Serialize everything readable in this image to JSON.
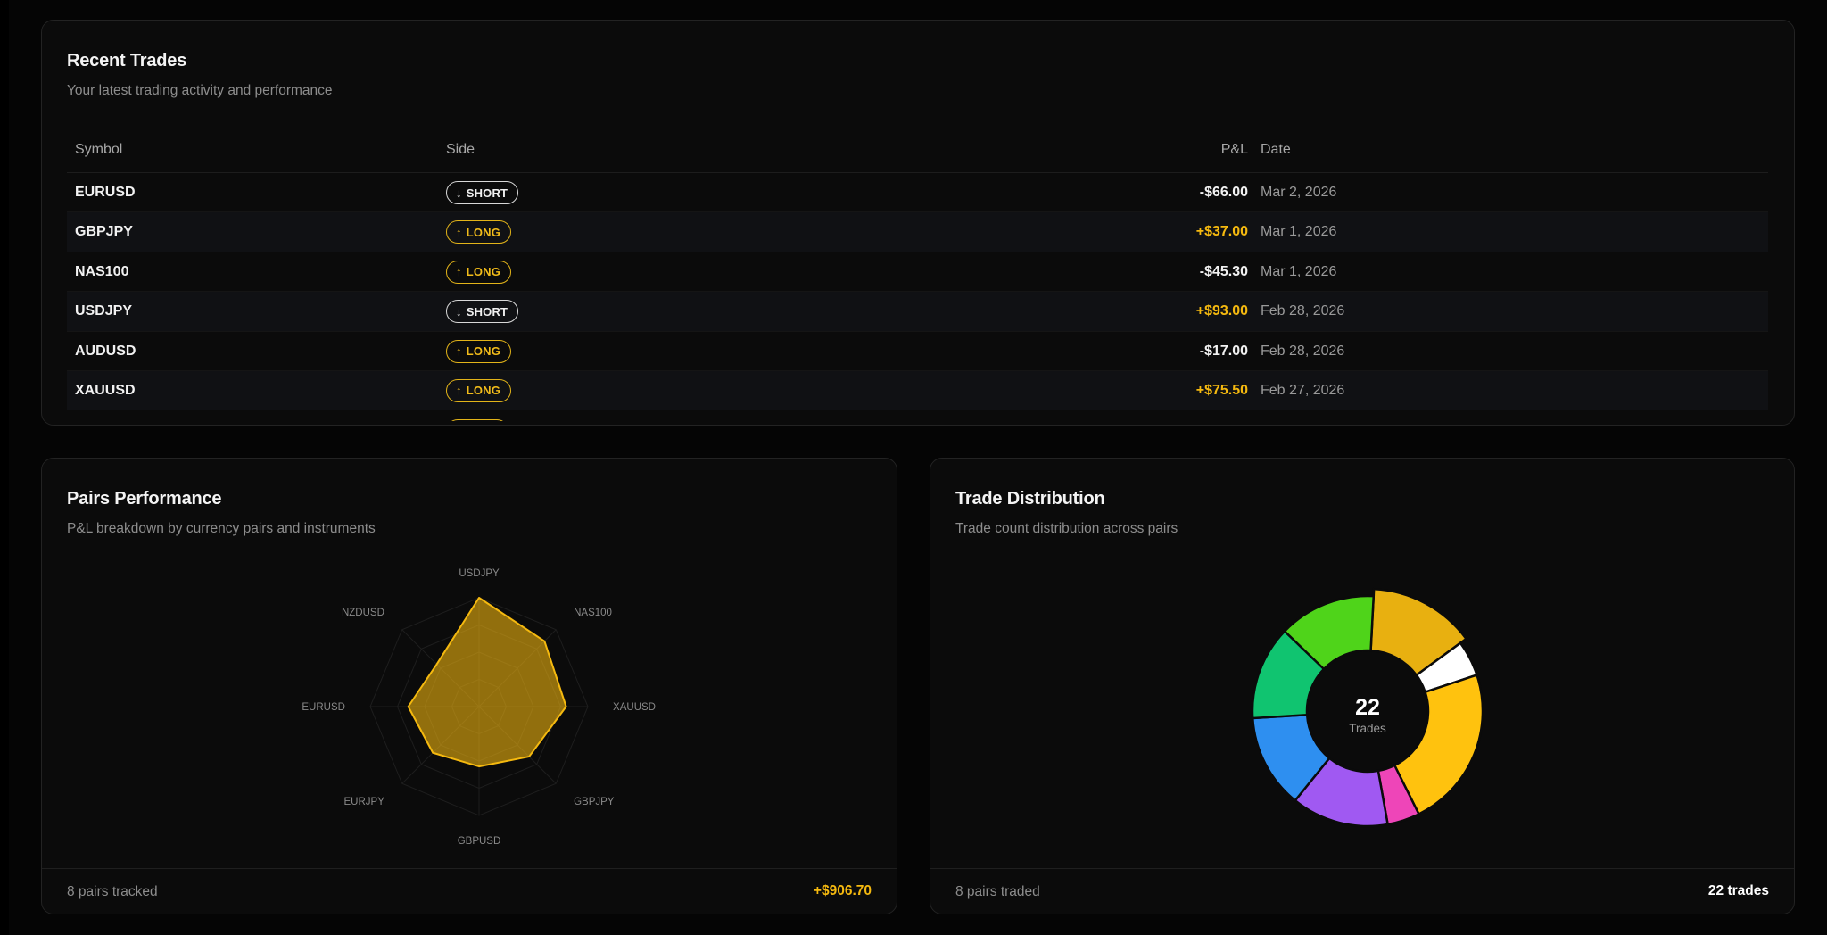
{
  "recent_trades": {
    "title": "Recent Trades",
    "subtitle": "Your latest trading activity and performance",
    "columns": {
      "symbol": "Symbol",
      "side": "Side",
      "pnl": "P&L",
      "date": "Date"
    },
    "rows": [
      {
        "symbol": "EURUSD",
        "side": "SHORT",
        "side_arrow": "↓",
        "pnl": "-$66.00",
        "positive": false,
        "date": "Mar 2, 2026"
      },
      {
        "symbol": "GBPJPY",
        "side": "LONG",
        "side_arrow": "↑",
        "pnl": "+$37.00",
        "positive": true,
        "date": "Mar 1, 2026"
      },
      {
        "symbol": "NAS100",
        "side": "LONG",
        "side_arrow": "↑",
        "pnl": "-$45.30",
        "positive": false,
        "date": "Mar 1, 2026"
      },
      {
        "symbol": "USDJPY",
        "side": "SHORT",
        "side_arrow": "↓",
        "pnl": "+$93.00",
        "positive": true,
        "date": "Feb 28, 2026"
      },
      {
        "symbol": "AUDUSD",
        "side": "LONG",
        "side_arrow": "↑",
        "pnl": "-$17.00",
        "positive": false,
        "date": "Feb 28, 2026"
      },
      {
        "symbol": "XAUUSD",
        "side": "LONG",
        "side_arrow": "↑",
        "pnl": "+$75.50",
        "positive": true,
        "date": "Feb 27, 2026"
      }
    ]
  },
  "pairs_performance": {
    "title": "Pairs Performance",
    "subtitle": "P&L breakdown by currency pairs and instruments",
    "footer_left": "8 pairs tracked",
    "footer_right": "+$906.70"
  },
  "trade_distribution": {
    "title": "Trade Distribution",
    "subtitle": "Trade count distribution across pairs",
    "center_value": "22",
    "center_label": "Trades",
    "footer_left": "8 pairs traded",
    "footer_right": "22 trades"
  },
  "chart_data": [
    {
      "type": "radar",
      "categories": [
        "USDJPY",
        "NAS100",
        "XAUUSD",
        "GBPJPY",
        "GBPUSD",
        "EURJPY",
        "EURUSD",
        "NZDUSD"
      ],
      "values": [
        1.0,
        0.85,
        0.8,
        0.65,
        0.55,
        0.6,
        0.65,
        0.55
      ],
      "range": [
        0,
        1
      ],
      "color": "#f5b90f"
    },
    {
      "type": "pie",
      "total": 22,
      "slices": [
        {
          "value": 3.1,
          "color": "#e8b010"
        },
        {
          "value": 1.1,
          "color": "#ffffff"
        },
        {
          "value": 5.0,
          "color": "#ffc20e"
        },
        {
          "value": 1.0,
          "color": "#ee45b8"
        },
        {
          "value": 3.0,
          "color": "#a059f2"
        },
        {
          "value": 2.9,
          "color": "#2e8ff0"
        },
        {
          "value": 2.9,
          "color": "#10c470"
        },
        {
          "value": 3.0,
          "color": "#4fd41a"
        }
      ]
    }
  ]
}
